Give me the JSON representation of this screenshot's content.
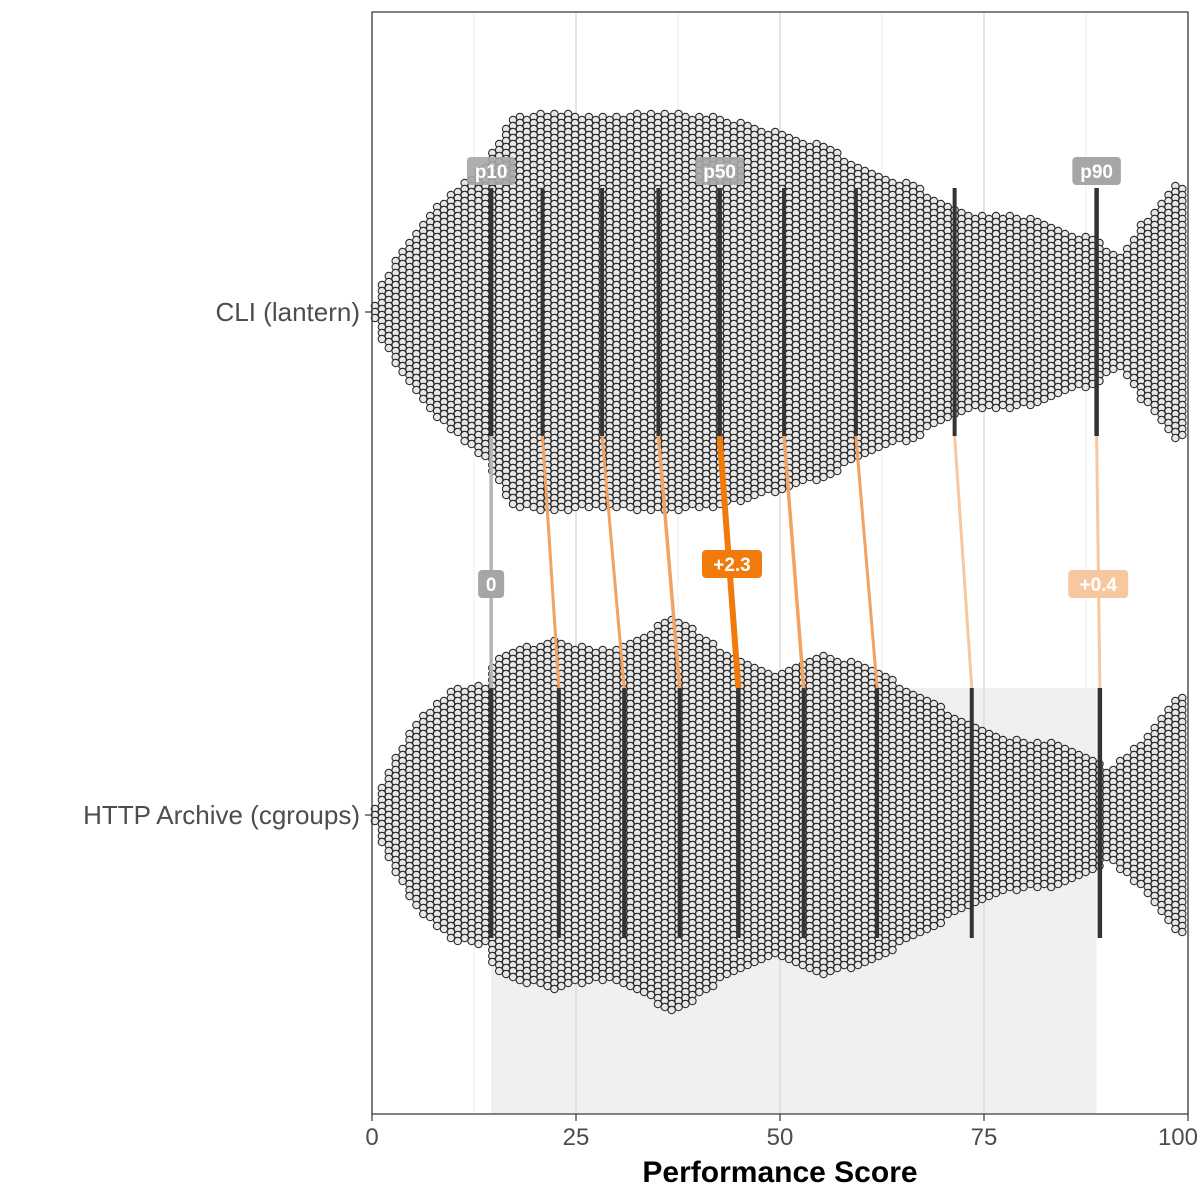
{
  "chart_data": {
    "type": "scatter",
    "subtype": "beeswarm with percentile comparison",
    "xlabel": "Performance Score",
    "xlim": [
      0,
      100
    ],
    "x_ticks": [
      0,
      25,
      50,
      75,
      100
    ],
    "x_tick_labels": [
      "0",
      "25",
      "50",
      "75",
      "100"
    ],
    "grid": true,
    "categories": [
      "CLI (lantern)",
      "HTTP Archive (cgroups)"
    ],
    "percentile_levels": [
      "p10",
      "p20",
      "p30",
      "p40",
      "p50",
      "p60",
      "p70",
      "p80",
      "p90"
    ],
    "series": [
      {
        "name": "CLI (lantern)",
        "percentiles": [
          14.6,
          20.9,
          28.2,
          35.1,
          42.6,
          50.5,
          59.3,
          71.4,
          88.8
        ]
      },
      {
        "name": "HTTP Archive (cgroups)",
        "percentiles": [
          14.6,
          22.9,
          30.9,
          37.7,
          44.9,
          52.9,
          61.9,
          73.5,
          89.2
        ]
      }
    ],
    "percentile_labels": [
      {
        "label": "p10",
        "percentile": "p10"
      },
      {
        "label": "p50",
        "percentile": "p50"
      },
      {
        "label": "p90",
        "percentile": "p90"
      }
    ],
    "difference_labels": [
      {
        "label": "0",
        "percentile": "p10",
        "value": 0
      },
      {
        "label": "+2.3",
        "percentile": "p50",
        "value": 2.3
      },
      {
        "label": "+0.4",
        "percentile": "p90",
        "value": 0.4
      }
    ],
    "highlight_range": [
      14.6,
      88.8
    ],
    "colors": {
      "percentile_line": "#333333",
      "difference_strong": "#f07a0a",
      "difference_medium": "#f2a261",
      "difference_light": "#f7c8a0",
      "difference_zero": "#b5b5b5",
      "tag_gray": "#a6a6a6",
      "highlight_band": "#f0f0f0",
      "point_fill": "#e8e8e8",
      "point_stroke": "#2a2a2a"
    }
  }
}
